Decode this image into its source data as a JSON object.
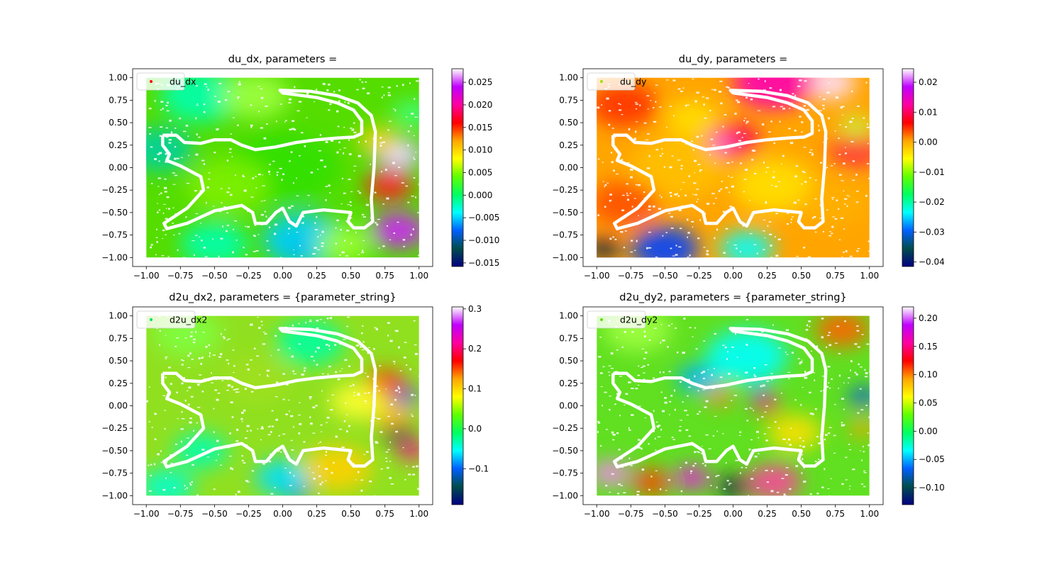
{
  "chart_data": [
    {
      "type": "scatter",
      "title": "du_dx, parameters = ",
      "legend": {
        "label": "du_dx",
        "marker_color": "#ff0000",
        "placement": "top-left"
      },
      "xlim": [
        -1.1,
        1.1
      ],
      "ylim": [
        -1.1,
        1.1
      ],
      "xticks": [
        -1.0,
        -0.75,
        -0.5,
        -0.25,
        0.0,
        0.25,
        0.5,
        0.75,
        1.0
      ],
      "xtick_labels": [
        "−1.00",
        "−0.75",
        "−0.50",
        "−0.25",
        "0.00",
        "0.25",
        "0.50",
        "0.75",
        "1.00"
      ],
      "yticks": [
        -1.0,
        -0.75,
        -0.5,
        -0.25,
        0.0,
        0.25,
        0.5,
        0.75,
        1.0
      ],
      "ytick_labels": [
        "−1.00",
        "−0.75",
        "−0.50",
        "−0.25",
        "0.00",
        "0.25",
        "0.50",
        "0.75",
        "1.00"
      ],
      "colorbar": {
        "range": [
          -0.0158,
          0.028
        ],
        "ticks": [
          -0.015,
          -0.01,
          -0.005,
          0.0,
          0.005,
          0.01,
          0.015,
          0.02,
          0.025
        ],
        "tick_labels": [
          "−0.015",
          "−0.010",
          "−0.005",
          "0.000",
          "0.005",
          "0.010",
          "0.015",
          "0.020",
          "0.025"
        ]
      },
      "colormap": "gist_ncar",
      "grid": false
    },
    {
      "type": "scatter",
      "title": "du_dy, parameters = ",
      "legend": {
        "label": "du_dy",
        "marker_color": "#a0e000",
        "placement": "top-left"
      },
      "xlim": [
        -1.1,
        1.1
      ],
      "ylim": [
        -1.1,
        1.1
      ],
      "xticks": [
        -1.0,
        -0.75,
        -0.5,
        -0.25,
        0.0,
        0.25,
        0.5,
        0.75,
        1.0
      ],
      "xtick_labels": [
        "−1.00",
        "−0.75",
        "−0.50",
        "−0.25",
        "0.00",
        "0.25",
        "0.50",
        "0.75",
        "1.00"
      ],
      "yticks": [
        -1.0,
        -0.75,
        -0.5,
        -0.25,
        0.0,
        0.25,
        0.5,
        0.75,
        1.0
      ],
      "ytick_labels": [
        "−1.00",
        "−0.75",
        "−0.50",
        "−0.25",
        "0.00",
        "0.25",
        "0.50",
        "0.75",
        "1.00"
      ],
      "colorbar": {
        "range": [
          -0.0415,
          0.0245
        ],
        "ticks": [
          -0.04,
          -0.03,
          -0.02,
          -0.01,
          0.0,
          0.01,
          0.02
        ],
        "tick_labels": [
          "−0.04",
          "−0.03",
          "−0.02",
          "−0.01",
          "0.00",
          "0.01",
          "0.02"
        ]
      },
      "colormap": "gist_ncar",
      "grid": false
    },
    {
      "type": "scatter",
      "title": "d2u_dx2, parameters = {parameter_string}",
      "legend": {
        "label": "d2u_dx2",
        "marker_color": "#00e070",
        "placement": "top-left"
      },
      "xlim": [
        -1.1,
        1.1
      ],
      "ylim": [
        -1.1,
        1.1
      ],
      "xticks": [
        -1.0,
        -0.75,
        -0.5,
        -0.25,
        0.0,
        0.25,
        0.5,
        0.75,
        1.0
      ],
      "xtick_labels": [
        "−1.00",
        "−0.75",
        "−0.50",
        "−0.25",
        "0.00",
        "0.25",
        "0.50",
        "0.75",
        "1.00"
      ],
      "yticks": [
        -1.0,
        -0.75,
        -0.5,
        -0.25,
        0.0,
        0.25,
        0.5,
        0.75,
        1.0
      ],
      "ytick_labels": [
        "−1.00",
        "−0.75",
        "−0.50",
        "−0.25",
        "0.00",
        "0.25",
        "0.50",
        "0.75",
        "1.00"
      ],
      "colorbar": {
        "range": [
          -0.19,
          0.305
        ],
        "ticks": [
          -0.1,
          0.0,
          0.1,
          0.2,
          0.3
        ],
        "tick_labels": [
          "−0.1",
          "0.0",
          "0.1",
          "0.2",
          "0.3"
        ]
      },
      "colormap": "gist_ncar",
      "grid": false
    },
    {
      "type": "scatter",
      "title": "d2u_dy2, parameters = {parameter_string}",
      "legend": {
        "label": "d2u_dy2",
        "marker_color": "#60e000",
        "placement": "top-left"
      },
      "xlim": [
        -1.1,
        1.1
      ],
      "ylim": [
        -1.1,
        1.1
      ],
      "xticks": [
        -1.0,
        -0.75,
        -0.5,
        -0.25,
        0.0,
        0.25,
        0.5,
        0.75,
        1.0
      ],
      "xtick_labels": [
        "−1.00",
        "−0.75",
        "−0.50",
        "−0.25",
        "0.00",
        "0.25",
        "0.50",
        "0.75",
        "1.00"
      ],
      "yticks": [
        -1.0,
        -0.75,
        -0.5,
        -0.25,
        0.0,
        0.25,
        0.5,
        0.75,
        1.0
      ],
      "ytick_labels": [
        "−1.00",
        "−0.75",
        "−0.50",
        "−0.25",
        "0.00",
        "0.25",
        "0.50",
        "0.75",
        "1.00"
      ],
      "colorbar": {
        "range": [
          -0.13,
          0.22
        ],
        "ticks": [
          -0.1,
          -0.05,
          0.0,
          0.05,
          0.1,
          0.15,
          0.2
        ],
        "tick_labels": [
          "−0.10",
          "−0.05",
          "0.00",
          "0.05",
          "0.10",
          "0.15",
          "0.20"
        ]
      },
      "colormap": "gist_ncar",
      "grid": false
    }
  ]
}
